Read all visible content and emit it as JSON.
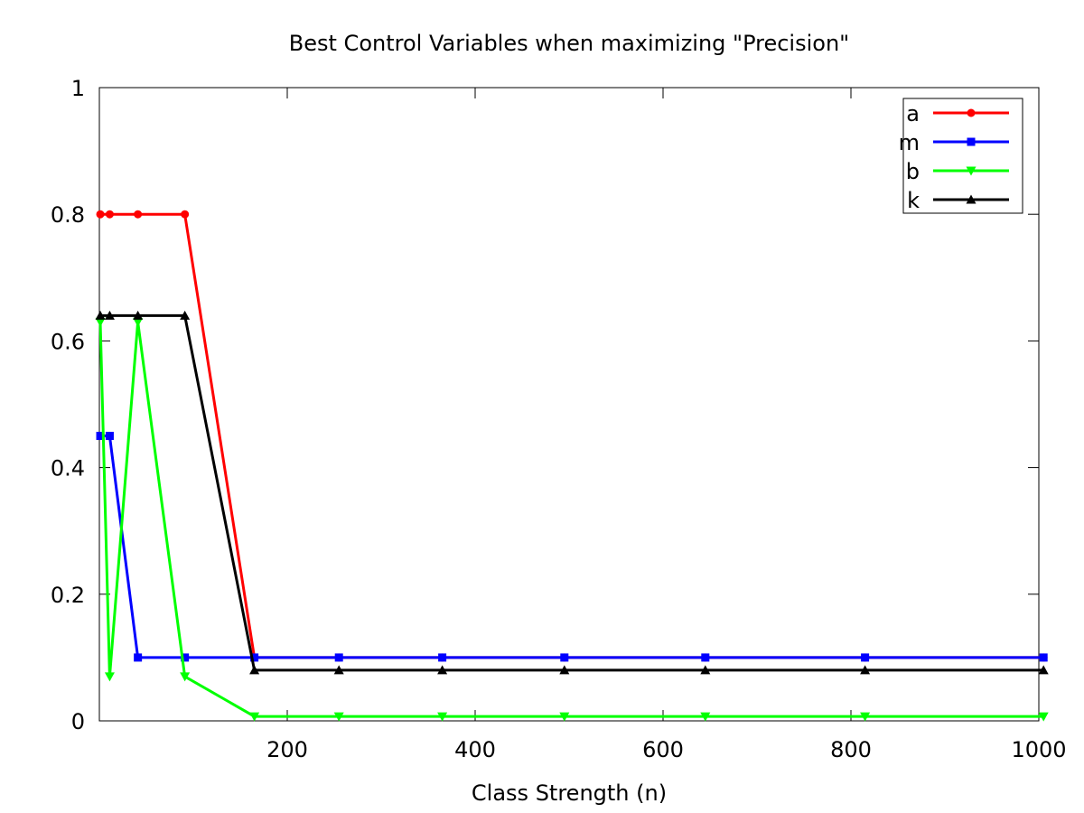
{
  "chart_data": {
    "type": "line",
    "title": "Best Control Variables when maximizing \"Precision\"",
    "xlabel": "Class Strength (n)",
    "ylabel": "",
    "xlim": [
      0,
      1000
    ],
    "ylim": [
      0,
      1
    ],
    "x_ticks": [
      "200",
      "400",
      "600",
      "800",
      "1000"
    ],
    "y_ticks": [
      "0",
      "0.2",
      "0.4",
      "0.6",
      "0.8",
      "1"
    ],
    "grid": false,
    "legend_position": "top-right",
    "series": [
      {
        "name": "a",
        "color": "#ff0000",
        "marker": "circle",
        "points": [
          [
            1,
            0.8
          ],
          [
            11,
            0.8
          ],
          [
            41,
            0.8
          ],
          [
            91,
            0.8
          ],
          [
            165,
            0.1
          ],
          [
            255,
            0.1
          ],
          [
            365,
            0.1
          ],
          [
            495,
            0.1
          ],
          [
            645,
            0.1
          ],
          [
            815,
            0.1
          ],
          [
            1005,
            0.1
          ]
        ]
      },
      {
        "name": "m",
        "color": "#0000ff",
        "marker": "square",
        "points": [
          [
            1,
            0.45
          ],
          [
            11,
            0.45
          ],
          [
            41,
            0.1
          ],
          [
            91,
            0.1
          ],
          [
            165,
            0.1
          ],
          [
            255,
            0.1
          ],
          [
            365,
            0.1
          ],
          [
            495,
            0.1
          ],
          [
            645,
            0.1
          ],
          [
            815,
            0.1
          ],
          [
            1005,
            0.1
          ]
        ]
      },
      {
        "name": "b",
        "color": "#00ff00",
        "marker": "triangle-down",
        "points": [
          [
            1,
            0.63
          ],
          [
            11,
            0.07
          ],
          [
            41,
            0.63
          ],
          [
            91,
            0.07
          ],
          [
            165,
            0.007
          ],
          [
            255,
            0.007
          ],
          [
            365,
            0.007
          ],
          [
            495,
            0.007
          ],
          [
            645,
            0.007
          ],
          [
            815,
            0.007
          ],
          [
            1005,
            0.007
          ]
        ]
      },
      {
        "name": "k",
        "color": "#000000",
        "marker": "triangle-up",
        "points": [
          [
            1,
            0.64
          ],
          [
            11,
            0.64
          ],
          [
            41,
            0.64
          ],
          [
            91,
            0.64
          ],
          [
            165,
            0.08
          ],
          [
            255,
            0.08
          ],
          [
            365,
            0.08
          ],
          [
            495,
            0.08
          ],
          [
            645,
            0.08
          ],
          [
            815,
            0.08
          ],
          [
            1005,
            0.08
          ]
        ]
      }
    ]
  }
}
